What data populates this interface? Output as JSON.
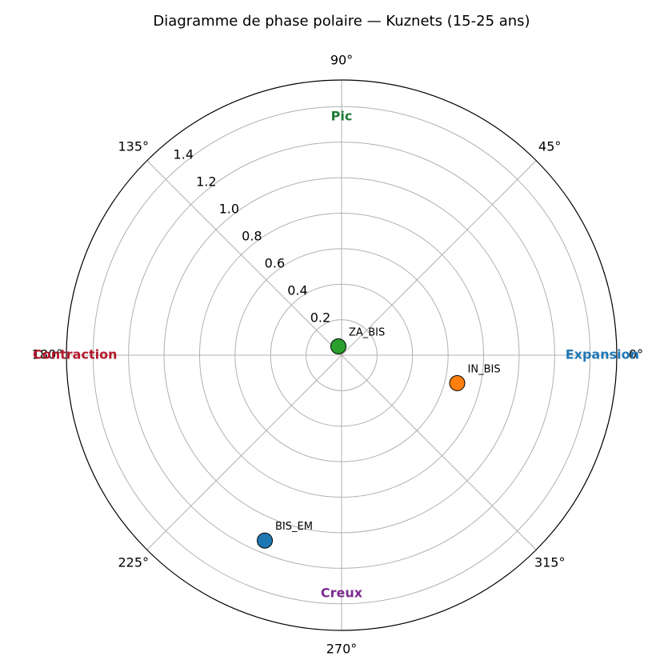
{
  "chart_data": {
    "type": "polar-scatter",
    "title": "Diagramme de phase polaire — Kuznets (15-25 ans)",
    "rlim": [
      0,
      1.55
    ],
    "rticks": [
      0.2,
      0.4,
      0.6,
      0.8,
      {
        "value": 1,
        "label": "1.0"
      },
      1.2,
      1.4
    ],
    "thetaticks": [
      {
        "value": 0,
        "label": "0°"
      },
      {
        "value": 45,
        "label": "45°"
      },
      {
        "value": 90,
        "label": "90°"
      },
      {
        "value": 135,
        "label": "135°"
      },
      {
        "value": 180,
        "label": "180°"
      },
      {
        "value": 225,
        "label": "225°"
      },
      {
        "value": 270,
        "label": "270°"
      },
      {
        "value": 315,
        "label": "315°"
      }
    ],
    "grid": true,
    "phase_labels": [
      {
        "text": "Expansion",
        "theta": 0,
        "color": "#1f77b4"
      },
      {
        "text": "Pic",
        "theta": 90,
        "color": "#1e7b34"
      },
      {
        "text": "Contraction",
        "theta": 180,
        "color": "#b2182b"
      },
      {
        "text": "Creux",
        "theta": 270,
        "color": "#7b2c8f"
      }
    ],
    "series": [
      {
        "name": "ZA_BIS",
        "color": "#2ca02c",
        "theta": 110,
        "r": 0.053
      },
      {
        "name": "IN_BIS",
        "color": "#ff7f0e",
        "theta": 346.4,
        "r": 0.67
      },
      {
        "name": "BIS_EM",
        "color": "#1f77b4",
        "theta": 247.5,
        "r": 1.13
      }
    ]
  }
}
